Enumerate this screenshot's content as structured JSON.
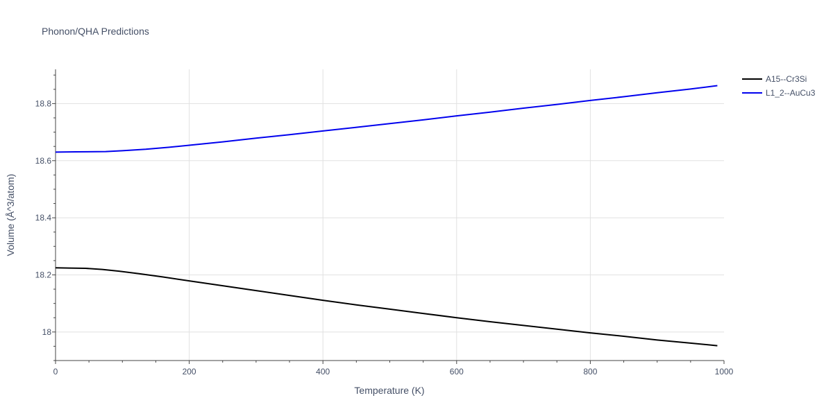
{
  "chart_data": {
    "type": "line",
    "title": "Phonon/QHA Predictions",
    "xlabel": "Temperature (K)",
    "ylabel": "Volume (Å^3/atom)",
    "xlim": [
      0,
      1000
    ],
    "ylim": [
      17.9,
      18.92
    ],
    "xticks": [
      0,
      200,
      400,
      600,
      800,
      1000
    ],
    "xtick_labels": [
      "0",
      "200",
      "400",
      "600",
      "800",
      "1000"
    ],
    "yticks": [
      18.0,
      18.2,
      18.4,
      18.6,
      18.8
    ],
    "ytick_labels": [
      "18",
      "18.2",
      "18.4",
      "18.6",
      "18.8"
    ],
    "grid": true,
    "legend_position": "top-right",
    "series": [
      {
        "name": "A15--Cr3Si",
        "color": "#000000",
        "x": [
          0,
          20,
          45,
          70,
          95,
          125,
          160,
          200,
          250,
          300,
          350,
          400,
          450,
          500,
          550,
          600,
          650,
          700,
          750,
          800,
          850,
          900,
          950,
          990
        ],
        "y": [
          18.225,
          18.224,
          18.223,
          18.219,
          18.213,
          18.204,
          18.193,
          18.179,
          18.162,
          18.145,
          18.128,
          18.111,
          18.095,
          18.08,
          18.065,
          18.05,
          18.036,
          18.023,
          18.01,
          17.997,
          17.985,
          17.972,
          17.961,
          17.952
        ]
      },
      {
        "name": "L1_2--AuCu3",
        "color": "#0000ee",
        "x": [
          0,
          30,
          75,
          100,
          135,
          170,
          200,
          250,
          300,
          350,
          400,
          450,
          500,
          550,
          600,
          650,
          700,
          750,
          800,
          850,
          900,
          950,
          990
        ],
        "y": [
          18.63,
          18.631,
          18.632,
          18.635,
          18.64,
          18.647,
          18.654,
          18.666,
          18.679,
          18.691,
          18.704,
          18.717,
          18.73,
          18.743,
          18.757,
          18.77,
          18.784,
          18.797,
          18.811,
          18.824,
          18.838,
          18.851,
          18.863
        ]
      }
    ]
  }
}
